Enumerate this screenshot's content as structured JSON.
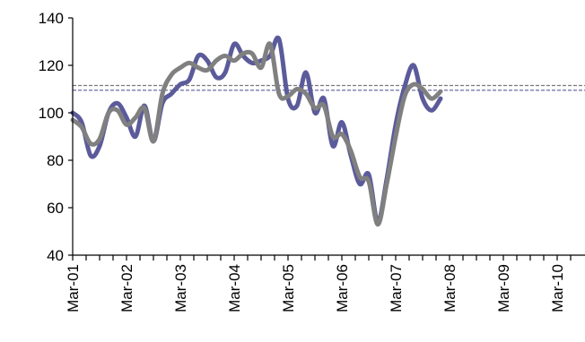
{
  "chart_data": {
    "type": "line",
    "title": "",
    "xlabel": "",
    "ylabel": "",
    "ylim": [
      40,
      140
    ],
    "yticks": [
      40,
      60,
      80,
      100,
      120,
      140
    ],
    "xlim": [
      "2001-03",
      "2010-07"
    ],
    "xtick_labels": [
      "Mar-01",
      "Mar-02",
      "Mar-03",
      "Mar-04",
      "Mar-05",
      "Mar-06",
      "Mar-07",
      "Mar-08",
      "Mar-09",
      "Mar-10"
    ],
    "grid": false,
    "legend": "none",
    "series": [
      {
        "color": "#5b5b9b",
        "points": [
          [
            "2001-03",
            100
          ],
          [
            "2001-05",
            96
          ],
          [
            "2001-07",
            82
          ],
          [
            "2001-09",
            86
          ],
          [
            "2001-11",
            100
          ],
          [
            "2002-01",
            104
          ],
          [
            "2002-03",
            98
          ],
          [
            "2002-05",
            90
          ],
          [
            "2002-07",
            103
          ],
          [
            "2002-09",
            88
          ],
          [
            "2002-11",
            104
          ],
          [
            "2003-01",
            108
          ],
          [
            "2003-03",
            112
          ],
          [
            "2003-05",
            114
          ],
          [
            "2003-07",
            124
          ],
          [
            "2003-09",
            122
          ],
          [
            "2003-11",
            115
          ],
          [
            "2004-01",
            117
          ],
          [
            "2004-03",
            129
          ],
          [
            "2004-05",
            124
          ],
          [
            "2004-07",
            121
          ],
          [
            "2004-09",
            122
          ],
          [
            "2004-11",
            124
          ],
          [
            "2005-01",
            131
          ],
          [
            "2005-03",
            106
          ],
          [
            "2005-05",
            103
          ],
          [
            "2005-07",
            117
          ],
          [
            "2005-09",
            100
          ],
          [
            "2005-11",
            106
          ],
          [
            "2006-01",
            86
          ],
          [
            "2006-03",
            96
          ],
          [
            "2006-05",
            82
          ],
          [
            "2006-07",
            70
          ],
          [
            "2006-09",
            74
          ],
          [
            "2006-11",
            54
          ],
          [
            "2007-01",
            72
          ],
          [
            "2007-03",
            95
          ],
          [
            "2007-05",
            111
          ],
          [
            "2007-07",
            120
          ],
          [
            "2007-09",
            106
          ],
          [
            "2007-11",
            101
          ],
          [
            "2008-01",
            106
          ]
        ]
      },
      {
        "color": "#808080",
        "points": [
          [
            "2001-03",
            97
          ],
          [
            "2001-05",
            94
          ],
          [
            "2001-07",
            87
          ],
          [
            "2001-09",
            89
          ],
          [
            "2001-11",
            100
          ],
          [
            "2002-01",
            101
          ],
          [
            "2002-03",
            95
          ],
          [
            "2002-05",
            98
          ],
          [
            "2002-07",
            102
          ],
          [
            "2002-09",
            88
          ],
          [
            "2002-11",
            108
          ],
          [
            "2003-01",
            116
          ],
          [
            "2003-03",
            119
          ],
          [
            "2003-05",
            121
          ],
          [
            "2003-07",
            119
          ],
          [
            "2003-09",
            118
          ],
          [
            "2003-11",
            122
          ],
          [
            "2004-01",
            124
          ],
          [
            "2004-03",
            122
          ],
          [
            "2004-05",
            125
          ],
          [
            "2004-07",
            125
          ],
          [
            "2004-09",
            119
          ],
          [
            "2004-11",
            129
          ],
          [
            "2005-01",
            108
          ],
          [
            "2005-03",
            107
          ],
          [
            "2005-05",
            110
          ],
          [
            "2005-07",
            108
          ],
          [
            "2005-09",
            102
          ],
          [
            "2005-11",
            103
          ],
          [
            "2006-01",
            90
          ],
          [
            "2006-03",
            91
          ],
          [
            "2006-05",
            84
          ],
          [
            "2006-07",
            73
          ],
          [
            "2006-09",
            71
          ],
          [
            "2006-11",
            53
          ],
          [
            "2007-01",
            70
          ],
          [
            "2007-03",
            90
          ],
          [
            "2007-05",
            107
          ],
          [
            "2007-07",
            112
          ],
          [
            "2007-09",
            110
          ],
          [
            "2007-11",
            106
          ],
          [
            "2008-01",
            109
          ]
        ]
      }
    ],
    "reference_lines": [
      {
        "y": 111.5,
        "color": "#7a7a7a",
        "style": "dashed"
      },
      {
        "y": 109.5,
        "color": "#5b5b9b",
        "style": "dashed"
      }
    ]
  }
}
